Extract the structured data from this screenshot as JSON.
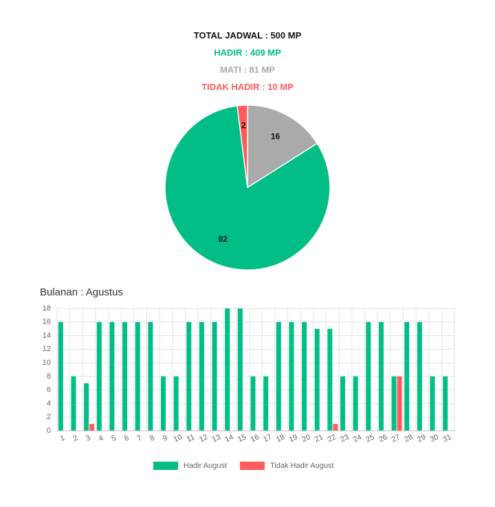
{
  "summary": {
    "total": "TOTAL JADWAL : 500 MP",
    "hadir": "HADIR : 409 MP",
    "mati": "MATI : 81 MP",
    "tidak_hadir": "TIDAK HADIR : 10 MP"
  },
  "colors": {
    "hadir": "#00be86",
    "mati": "#aaaaaa",
    "tidak_hadir": "#ff5b5b"
  },
  "section_title": "Bulanan : Agustus",
  "chart_data": [
    {
      "type": "pie",
      "slices": [
        {
          "label": "Mati",
          "value": 16,
          "color": "#aaaaaa",
          "display": "16"
        },
        {
          "label": "Hadir",
          "value": 82,
          "color": "#00be86",
          "display": "82"
        },
        {
          "label": "Tidak Hadir",
          "value": 2,
          "color": "#ff5b5b",
          "display": "2"
        }
      ]
    },
    {
      "type": "bar",
      "categories": [
        "1",
        "2",
        "3",
        "4",
        "5",
        "6",
        "7",
        "8",
        "9",
        "10",
        "11",
        "12",
        "13",
        "14",
        "15",
        "16",
        "17",
        "18",
        "19",
        "20",
        "21",
        "22",
        "23",
        "24",
        "25",
        "26",
        "27",
        "28",
        "29",
        "30",
        "31"
      ],
      "series": [
        {
          "name": "Hadir August",
          "color": "#00be86",
          "values": [
            16,
            8,
            7,
            16,
            16,
            16,
            16,
            16,
            8,
            8,
            16,
            16,
            16,
            18,
            18,
            8,
            8,
            16,
            16,
            16,
            15,
            15,
            8,
            8,
            16,
            16,
            8,
            16,
            16,
            8,
            8
          ]
        },
        {
          "name": "Tidak Hadir August",
          "color": "#ff5b5b",
          "values": [
            0,
            0,
            1,
            0,
            0,
            0,
            0,
            0,
            0,
            0,
            0,
            0,
            0,
            0,
            0,
            0,
            0,
            0,
            0,
            0,
            0,
            1,
            0,
            0,
            0,
            0,
            8,
            0,
            0,
            0,
            0
          ]
        }
      ],
      "yticks": [
        0,
        2,
        4,
        6,
        8,
        10,
        12,
        14,
        16,
        18
      ],
      "ylim": [
        0,
        18
      ],
      "grid": true,
      "legend_position": "bottom"
    }
  ]
}
